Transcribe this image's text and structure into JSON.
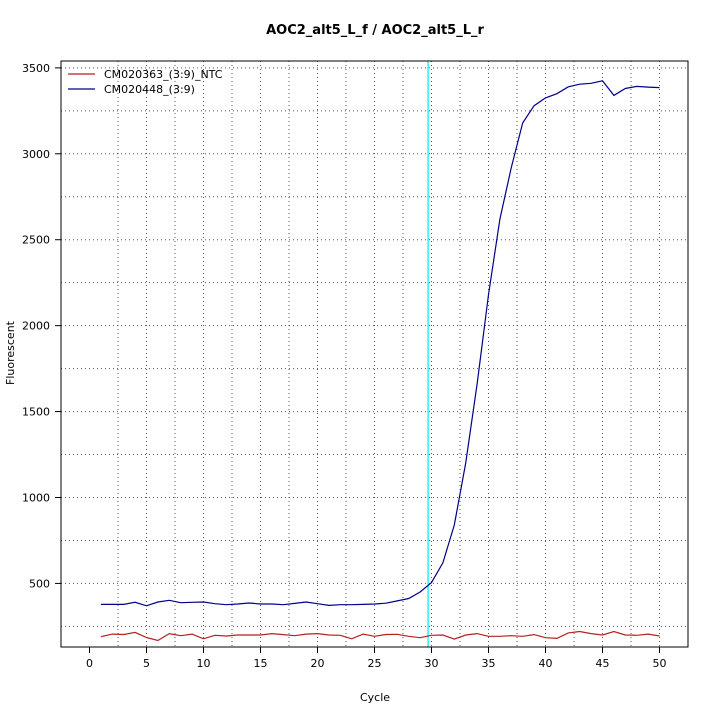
{
  "chart_data": {
    "type": "line",
    "title": "AOC2_alt5_L_f / AOC2_alt5_L_r",
    "xlabel": "Cycle",
    "ylabel": "Fluorescent",
    "xlim": [
      -2.5,
      52.5
    ],
    "ylim": [
      130,
      3540
    ],
    "x_ticks": [
      0,
      5,
      10,
      15,
      20,
      25,
      30,
      35,
      40,
      45,
      50
    ],
    "y_ticks": [
      500,
      1000,
      1500,
      2000,
      2500,
      3000,
      3500
    ],
    "grid": true,
    "grid_style": "dotted",
    "legend_position": "top-left",
    "threshold_line": {
      "x": 29.7,
      "color": "#00e5ff"
    },
    "x": [
      1,
      2,
      3,
      4,
      5,
      6,
      7,
      8,
      9,
      10,
      11,
      12,
      13,
      14,
      15,
      16,
      17,
      18,
      19,
      20,
      21,
      22,
      23,
      24,
      25,
      26,
      27,
      28,
      29,
      30,
      31,
      32,
      33,
      34,
      35,
      36,
      37,
      38,
      39,
      40,
      41,
      42,
      43,
      44,
      45,
      46,
      47,
      48,
      49,
      50
    ],
    "series": [
      {
        "name": "CM020363_(3:9)_NTC",
        "color": "#b22222",
        "values": [
          190,
          205,
          203,
          215,
          185,
          168,
          208,
          196,
          205,
          178,
          198,
          194,
          200,
          200,
          200,
          208,
          202,
          196,
          205,
          208,
          200,
          198,
          178,
          205,
          192,
          203,
          204,
          192,
          184,
          198,
          200,
          176,
          200,
          208,
          192,
          192,
          196,
          192,
          202,
          184,
          180,
          212,
          220,
          208,
          200,
          220,
          200,
          198,
          205,
          194
        ]
      },
      {
        "name": "CM020448_(3:9)",
        "color": "#00008b",
        "values": [
          378,
          378,
          378,
          390,
          370,
          392,
          402,
          388,
          390,
          392,
          382,
          376,
          380,
          386,
          380,
          380,
          376,
          384,
          392,
          382,
          372,
          376,
          376,
          378,
          380,
          385,
          398,
          412,
          450,
          505,
          620,
          840,
          1200,
          1660,
          2180,
          2620,
          2920,
          3180,
          3280,
          3325,
          3350,
          3390,
          3405,
          3410,
          3425,
          3340,
          3380,
          3392,
          3388,
          3385
        ]
      }
    ]
  }
}
